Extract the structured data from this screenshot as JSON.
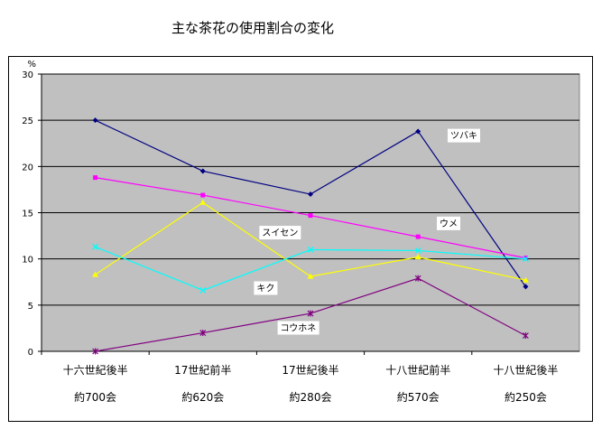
{
  "chart_data": {
    "type": "line",
    "title": "主な茶花の使用割合の変化",
    "ylabel": "%",
    "ylim": [
      0,
      30
    ],
    "yticks": [
      0,
      5,
      10,
      15,
      20,
      25,
      30
    ],
    "categories": [
      "十六世紀後半",
      "17世紀前半",
      "17世紀後半",
      "十八世紀前半",
      "十八世紀後半"
    ],
    "sublabels": [
      "約700会",
      "約620会",
      "約280会",
      "約570会",
      "約250会"
    ],
    "grid": true,
    "legend": "inline",
    "series": [
      {
        "name": "ツバキ",
        "color": "#000080",
        "marker": "diamond",
        "values": [
          25.0,
          19.5,
          17.0,
          23.8,
          7.0
        ]
      },
      {
        "name": "ウメ",
        "color": "#ff00ff",
        "marker": "square",
        "values": [
          18.8,
          16.9,
          14.7,
          12.4,
          10.1
        ]
      },
      {
        "name": "スイセン",
        "color": "#ffff00",
        "marker": "triangle",
        "values": [
          8.3,
          16.1,
          8.1,
          10.2,
          7.7
        ]
      },
      {
        "name": "キク",
        "color": "#00ffff",
        "marker": "x",
        "values": [
          11.3,
          6.6,
          11.0,
          10.9,
          10.0
        ]
      },
      {
        "name": "コウホネ",
        "color": "#800080",
        "marker": "star",
        "values": [
          0.0,
          2.0,
          4.1,
          7.9,
          1.7
        ]
      }
    ]
  }
}
